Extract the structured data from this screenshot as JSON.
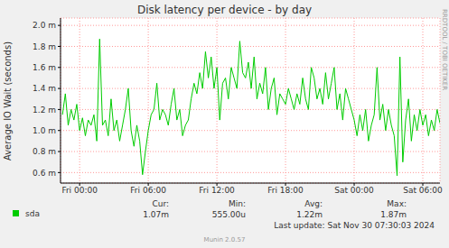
{
  "chart_data": {
    "type": "line",
    "title": "Disk latency per device - by day",
    "y_label": "Average IO Wait (seconds)",
    "watermark": "RRDTOOL / TOBI OETIKER",
    "stats": [
      "Cur:",
      "Min:",
      "Avg:",
      "Max:"
    ],
    "stat_values": [
      "1.07m",
      "555.00u",
      "1.22m",
      "1.87m"
    ],
    "last_update": "Last update: Sat Nov 30 07:30:03 2024",
    "footer": "Munin 2.0.57",
    "grid": true,
    "x": [
      -1.5,
      -1.25,
      -1.0,
      -0.75,
      -0.5,
      -0.25,
      0,
      0.25,
      0.5,
      0.75,
      1.0,
      1.25,
      1.5,
      1.75,
      2.0,
      2.25,
      2.5,
      2.75,
      3.0,
      3.25,
      3.5,
      3.75,
      4.0,
      4.25,
      4.5,
      4.75,
      5.0,
      5.25,
      5.5,
      5.75,
      6.0,
      6.25,
      6.5,
      6.75,
      7.0,
      7.25,
      7.5,
      7.75,
      8.0,
      8.25,
      8.5,
      8.75,
      9.0,
      9.25,
      9.5,
      9.75,
      10.0,
      10.25,
      10.5,
      10.75,
      11.0,
      11.25,
      11.5,
      11.75,
      12.0,
      12.25,
      12.5,
      12.75,
      13.0,
      13.25,
      13.5,
      13.75,
      14.0,
      14.25,
      14.5,
      14.75,
      15.0,
      15.25,
      15.5,
      15.75,
      16.0,
      16.25,
      16.5,
      16.75,
      17.0,
      17.25,
      17.5,
      17.75,
      18.0,
      18.25,
      18.5,
      18.75,
      19.0,
      19.25,
      19.5,
      19.75,
      20.0,
      20.25,
      20.5,
      20.75,
      21.0,
      21.25,
      21.5,
      21.75,
      22.0,
      22.25,
      22.5,
      22.75,
      23.0,
      23.25,
      23.5,
      23.75,
      24.0,
      24.25,
      24.5,
      24.75,
      25.0,
      25.25,
      25.5,
      25.75,
      26.0,
      26.25,
      26.5,
      26.75,
      27.0,
      27.25,
      27.5,
      27.75,
      28.0,
      28.25,
      28.5,
      28.75,
      29.0,
      29.25,
      29.5,
      29.75,
      30.0,
      30.25,
      30.5,
      30.75,
      31.0,
      31.25,
      31.5
    ],
    "series": [
      {
        "name": "sda",
        "color": "#00cc00",
        "values": [
          0.00115,
          0.00135,
          0.00105,
          0.0012,
          0.0011,
          0.00125,
          0.001,
          0.00112,
          0.00095,
          0.0011,
          0.00105,
          0.00115,
          0.0009,
          0.00187,
          0.00105,
          0.0011,
          0.00095,
          0.0013,
          0.001,
          0.0011,
          0.0009,
          0.00105,
          0.0012,
          0.0014,
          0.001,
          0.00085,
          0.00105,
          0.0009,
          0.00058,
          0.0008,
          0.001,
          0.00115,
          0.0012,
          0.00145,
          0.0011,
          0.0012,
          0.00115,
          0.00105,
          0.00125,
          0.0014,
          0.0011,
          0.0012,
          0.00095,
          0.00105,
          0.0011,
          0.0013,
          0.00145,
          0.00135,
          0.00155,
          0.0014,
          0.00175,
          0.0015,
          0.0017,
          0.0014,
          0.0016,
          0.0011,
          0.00145,
          0.0015,
          0.0013,
          0.0016,
          0.0015,
          0.0014,
          0.00185,
          0.00155,
          0.0015,
          0.00165,
          0.0014,
          0.0017,
          0.0013,
          0.00145,
          0.00135,
          0.0016,
          0.0012,
          0.0014,
          0.0015,
          0.00115,
          0.00135,
          0.0013,
          0.00125,
          0.0014,
          0.0013,
          0.0012,
          0.00135,
          0.00125,
          0.0015,
          0.0013,
          0.0012,
          0.0016,
          0.0015,
          0.0013,
          0.0014,
          0.00125,
          0.00155,
          0.0013,
          0.00145,
          0.0016,
          0.0012,
          0.00135,
          0.0011,
          0.0014,
          0.0013,
          0.0012,
          0.0011,
          0.00095,
          0.00115,
          0.001,
          0.0012,
          0.0009,
          0.00105,
          0.00115,
          0.0016,
          0.0011,
          0.00125,
          0.001,
          0.0012,
          0.00105,
          0.00095,
          0.00057,
          0.0017,
          0.0007,
          0.0011,
          0.0013,
          0.0009,
          0.00115,
          0.001,
          0.0012,
          0.00105,
          0.00115,
          0.00095,
          0.0011,
          0.001,
          0.0012,
          0.00107
        ]
      }
    ],
    "xlim": [
      -1.67,
      31.5
    ],
    "xticks": [
      {
        "value": 0,
        "label": "Fri 00:00"
      },
      {
        "value": 6,
        "label": "Fri 06:00"
      },
      {
        "value": 12,
        "label": "Fri 12:00"
      },
      {
        "value": 18,
        "label": "Fri 18:00"
      },
      {
        "value": 24,
        "label": "Sat 00:00"
      },
      {
        "value": 30,
        "label": "Sat 06:00"
      }
    ],
    "ylim": [
      0.0005,
      0.00207
    ],
    "yticks": [
      {
        "value": 0.0006,
        "label": "0.6 m"
      },
      {
        "value": 0.0008,
        "label": "0.8 m"
      },
      {
        "value": 0.001,
        "label": "1.0 m"
      },
      {
        "value": 0.0012,
        "label": "1.2 m"
      },
      {
        "value": 0.0014,
        "label": "1.4 m"
      },
      {
        "value": 0.0016,
        "label": "1.6 m"
      },
      {
        "value": 0.0018,
        "label": "1.8 m"
      },
      {
        "value": 0.002,
        "label": "2.0 m"
      }
    ]
  }
}
